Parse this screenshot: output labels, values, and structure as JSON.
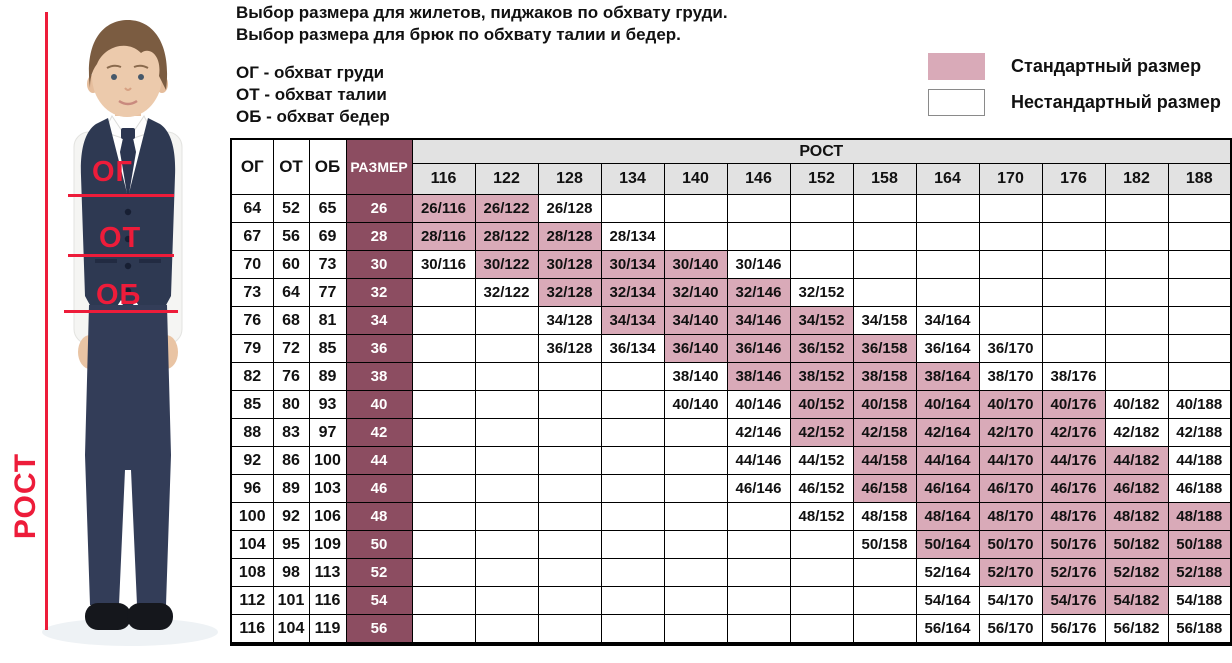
{
  "header": {
    "line1": "Выбор размера для жилетов, пиджаков по обхвату груди.",
    "line2": "Выбор размера для брюк по обхвату талии и бедер.",
    "abbr_chest": "ОГ - обхват груди",
    "abbr_waist": "ОТ - обхват талии",
    "abbr_hips": "ОБ - обхват бедер"
  },
  "legend": {
    "standard": "Стандартный размер",
    "nonstandard": "Нестандартный размер"
  },
  "figure": {
    "chest_label": "ОГ",
    "waist_label": "ОТ",
    "hips_label": "ОБ",
    "height_label": "РОСТ"
  },
  "colors": {
    "standard_cell": "#d9aab8",
    "size_column": "#8c4d61",
    "header_gray": "#e2e2e2",
    "annotation_red": "#ed1c3a"
  },
  "table": {
    "headers": {
      "og": "ОГ",
      "ot": "ОТ",
      "ob": "ОБ",
      "size": "РАЗМЕР",
      "rost": "РОСТ"
    },
    "heights": [
      "116",
      "122",
      "128",
      "134",
      "140",
      "146",
      "152",
      "158",
      "164",
      "170",
      "176",
      "182",
      "188"
    ],
    "rows": [
      {
        "og": "64",
        "ot": "52",
        "ob": "65",
        "size": "26",
        "cells": [
          {
            "t": "26/116",
            "s": 1
          },
          {
            "t": "26/122",
            "s": 1
          },
          {
            "t": "26/128",
            "s": 0
          },
          null,
          null,
          null,
          null,
          null,
          null,
          null,
          null,
          null,
          null
        ]
      },
      {
        "og": "67",
        "ot": "56",
        "ob": "69",
        "size": "28",
        "cells": [
          {
            "t": "28/116",
            "s": 1
          },
          {
            "t": "28/122",
            "s": 1
          },
          {
            "t": "28/128",
            "s": 1
          },
          {
            "t": "28/134",
            "s": 0
          },
          null,
          null,
          null,
          null,
          null,
          null,
          null,
          null,
          null
        ]
      },
      {
        "og": "70",
        "ot": "60",
        "ob": "73",
        "size": "30",
        "cells": [
          {
            "t": "30/116",
            "s": 0
          },
          {
            "t": "30/122",
            "s": 1
          },
          {
            "t": "30/128",
            "s": 1
          },
          {
            "t": "30/134",
            "s": 1
          },
          {
            "t": "30/140",
            "s": 1
          },
          {
            "t": "30/146",
            "s": 0
          },
          null,
          null,
          null,
          null,
          null,
          null,
          null
        ]
      },
      {
        "og": "73",
        "ot": "64",
        "ob": "77",
        "size": "32",
        "cells": [
          null,
          {
            "t": "32/122",
            "s": 0
          },
          {
            "t": "32/128",
            "s": 1
          },
          {
            "t": "32/134",
            "s": 1
          },
          {
            "t": "32/140",
            "s": 1
          },
          {
            "t": "32/146",
            "s": 1
          },
          {
            "t": "32/152",
            "s": 0
          },
          null,
          null,
          null,
          null,
          null,
          null
        ]
      },
      {
        "og": "76",
        "ot": "68",
        "ob": "81",
        "size": "34",
        "cells": [
          null,
          null,
          {
            "t": "34/128",
            "s": 0
          },
          {
            "t": "34/134",
            "s": 1
          },
          {
            "t": "34/140",
            "s": 1
          },
          {
            "t": "34/146",
            "s": 1
          },
          {
            "t": "34/152",
            "s": 1
          },
          {
            "t": "34/158",
            "s": 0
          },
          {
            "t": "34/164",
            "s": 0
          },
          null,
          null,
          null,
          null
        ]
      },
      {
        "og": "79",
        "ot": "72",
        "ob": "85",
        "size": "36",
        "cells": [
          null,
          null,
          {
            "t": "36/128",
            "s": 0
          },
          {
            "t": "36/134",
            "s": 0
          },
          {
            "t": "36/140",
            "s": 1
          },
          {
            "t": "36/146",
            "s": 1
          },
          {
            "t": "36/152",
            "s": 1
          },
          {
            "t": "36/158",
            "s": 1
          },
          {
            "t": "36/164",
            "s": 0
          },
          {
            "t": "36/170",
            "s": 0
          },
          null,
          null,
          null
        ]
      },
      {
        "og": "82",
        "ot": "76",
        "ob": "89",
        "size": "38",
        "cells": [
          null,
          null,
          null,
          null,
          {
            "t": "38/140",
            "s": 0
          },
          {
            "t": "38/146",
            "s": 1
          },
          {
            "t": "38/152",
            "s": 1
          },
          {
            "t": "38/158",
            "s": 1
          },
          {
            "t": "38/164",
            "s": 1
          },
          {
            "t": "38/170",
            "s": 0
          },
          {
            "t": "38/176",
            "s": 0
          },
          null,
          null
        ]
      },
      {
        "og": "85",
        "ot": "80",
        "ob": "93",
        "size": "40",
        "cells": [
          null,
          null,
          null,
          null,
          {
            "t": "40/140",
            "s": 0
          },
          {
            "t": "40/146",
            "s": 0
          },
          {
            "t": "40/152",
            "s": 1
          },
          {
            "t": "40/158",
            "s": 1
          },
          {
            "t": "40/164",
            "s": 1
          },
          {
            "t": "40/170",
            "s": 1
          },
          {
            "t": "40/176",
            "s": 1
          },
          {
            "t": "40/182",
            "s": 0
          },
          {
            "t": "40/188",
            "s": 0
          }
        ]
      },
      {
        "og": "88",
        "ot": "83",
        "ob": "97",
        "size": "42",
        "cells": [
          null,
          null,
          null,
          null,
          null,
          {
            "t": "42/146",
            "s": 0
          },
          {
            "t": "42/152",
            "s": 1
          },
          {
            "t": "42/158",
            "s": 1
          },
          {
            "t": "42/164",
            "s": 1
          },
          {
            "t": "42/170",
            "s": 1
          },
          {
            "t": "42/176",
            "s": 1
          },
          {
            "t": "42/182",
            "s": 0
          },
          {
            "t": "42/188",
            "s": 0
          }
        ]
      },
      {
        "og": "92",
        "ot": "86",
        "ob": "100",
        "size": "44",
        "cells": [
          null,
          null,
          null,
          null,
          null,
          {
            "t": "44/146",
            "s": 0
          },
          {
            "t": "44/152",
            "s": 0
          },
          {
            "t": "44/158",
            "s": 1
          },
          {
            "t": "44/164",
            "s": 1
          },
          {
            "t": "44/170",
            "s": 1
          },
          {
            "t": "44/176",
            "s": 1
          },
          {
            "t": "44/182",
            "s": 1
          },
          {
            "t": "44/188",
            "s": 0
          }
        ]
      },
      {
        "og": "96",
        "ot": "89",
        "ob": "103",
        "size": "46",
        "cells": [
          null,
          null,
          null,
          null,
          null,
          {
            "t": "46/146",
            "s": 0
          },
          {
            "t": "46/152",
            "s": 0
          },
          {
            "t": "46/158",
            "s": 1
          },
          {
            "t": "46/164",
            "s": 1
          },
          {
            "t": "46/170",
            "s": 1
          },
          {
            "t": "46/176",
            "s": 1
          },
          {
            "t": "46/182",
            "s": 1
          },
          {
            "t": "46/188",
            "s": 0
          }
        ]
      },
      {
        "og": "100",
        "ot": "92",
        "ob": "106",
        "size": "48",
        "cells": [
          null,
          null,
          null,
          null,
          null,
          null,
          {
            "t": "48/152",
            "s": 0
          },
          {
            "t": "48/158",
            "s": 0
          },
          {
            "t": "48/164",
            "s": 1
          },
          {
            "t": "48/170",
            "s": 1
          },
          {
            "t": "48/176",
            "s": 1
          },
          {
            "t": "48/182",
            "s": 1
          },
          {
            "t": "48/188",
            "s": 1
          }
        ]
      },
      {
        "og": "104",
        "ot": "95",
        "ob": "109",
        "size": "50",
        "cells": [
          null,
          null,
          null,
          null,
          null,
          null,
          null,
          {
            "t": "50/158",
            "s": 0
          },
          {
            "t": "50/164",
            "s": 1
          },
          {
            "t": "50/170",
            "s": 1
          },
          {
            "t": "50/176",
            "s": 1
          },
          {
            "t": "50/182",
            "s": 1
          },
          {
            "t": "50/188",
            "s": 1
          }
        ]
      },
      {
        "og": "108",
        "ot": "98",
        "ob": "113",
        "size": "52",
        "cells": [
          null,
          null,
          null,
          null,
          null,
          null,
          null,
          null,
          {
            "t": "52/164",
            "s": 0
          },
          {
            "t": "52/170",
            "s": 1
          },
          {
            "t": "52/176",
            "s": 1
          },
          {
            "t": "52/182",
            "s": 1
          },
          {
            "t": "52/188",
            "s": 1
          }
        ]
      },
      {
        "og": "112",
        "ot": "101",
        "ob": "116",
        "size": "54",
        "cells": [
          null,
          null,
          null,
          null,
          null,
          null,
          null,
          null,
          {
            "t": "54/164",
            "s": 0
          },
          {
            "t": "54/170",
            "s": 0
          },
          {
            "t": "54/176",
            "s": 1
          },
          {
            "t": "54/182",
            "s": 1
          },
          {
            "t": "54/188",
            "s": 0
          }
        ]
      },
      {
        "og": "116",
        "ot": "104",
        "ob": "119",
        "size": "56",
        "cells": [
          null,
          null,
          null,
          null,
          null,
          null,
          null,
          null,
          {
            "t": "56/164",
            "s": 0
          },
          {
            "t": "56/170",
            "s": 0
          },
          {
            "t": "56/176",
            "s": 0
          },
          {
            "t": "56/182",
            "s": 0
          },
          {
            "t": "56/188",
            "s": 0
          }
        ]
      }
    ]
  }
}
